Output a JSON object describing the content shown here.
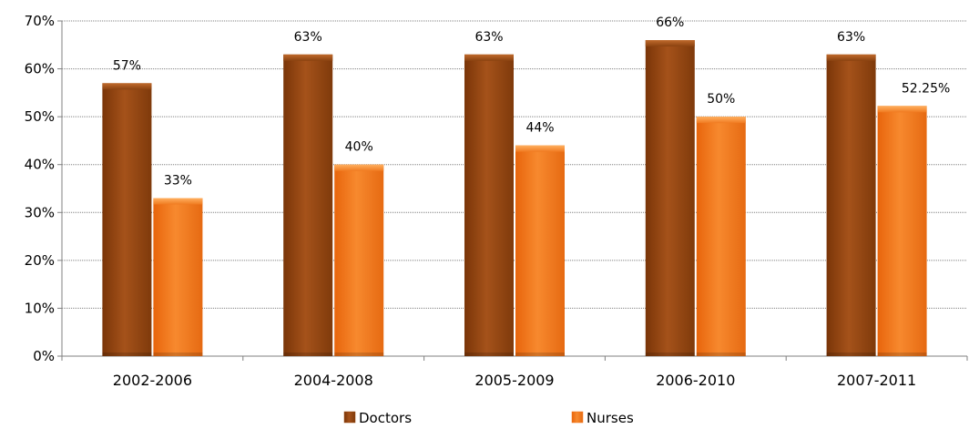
{
  "chart_data": {
    "type": "bar",
    "categories": [
      "2002-2006",
      "2004-2008",
      "2005-2009",
      "2006-2010",
      "2007-2011"
    ],
    "series": [
      {
        "name": "Doctors",
        "values": [
          57,
          63,
          63,
          66,
          63
        ],
        "labels": [
          "57%",
          "63%",
          "63%",
          "66%",
          "63%"
        ],
        "color": "#9a4a10"
      },
      {
        "name": "Nurses",
        "values": [
          33,
          40,
          44,
          50,
          52.25
        ],
        "labels": [
          "33%",
          "40%",
          "44%",
          "50%",
          "52.25%"
        ],
        "color": "#f2761a"
      }
    ],
    "ylim": [
      0,
      70
    ],
    "yticks": [
      0,
      10,
      20,
      30,
      40,
      50,
      60,
      70
    ],
    "ytick_labels": [
      "0%",
      "10%",
      "20%",
      "30%",
      "40%",
      "50%",
      "60%",
      "70%"
    ],
    "grid": true,
    "legend": "bottom",
    "title": "",
    "xlabel": "",
    "ylabel": ""
  }
}
